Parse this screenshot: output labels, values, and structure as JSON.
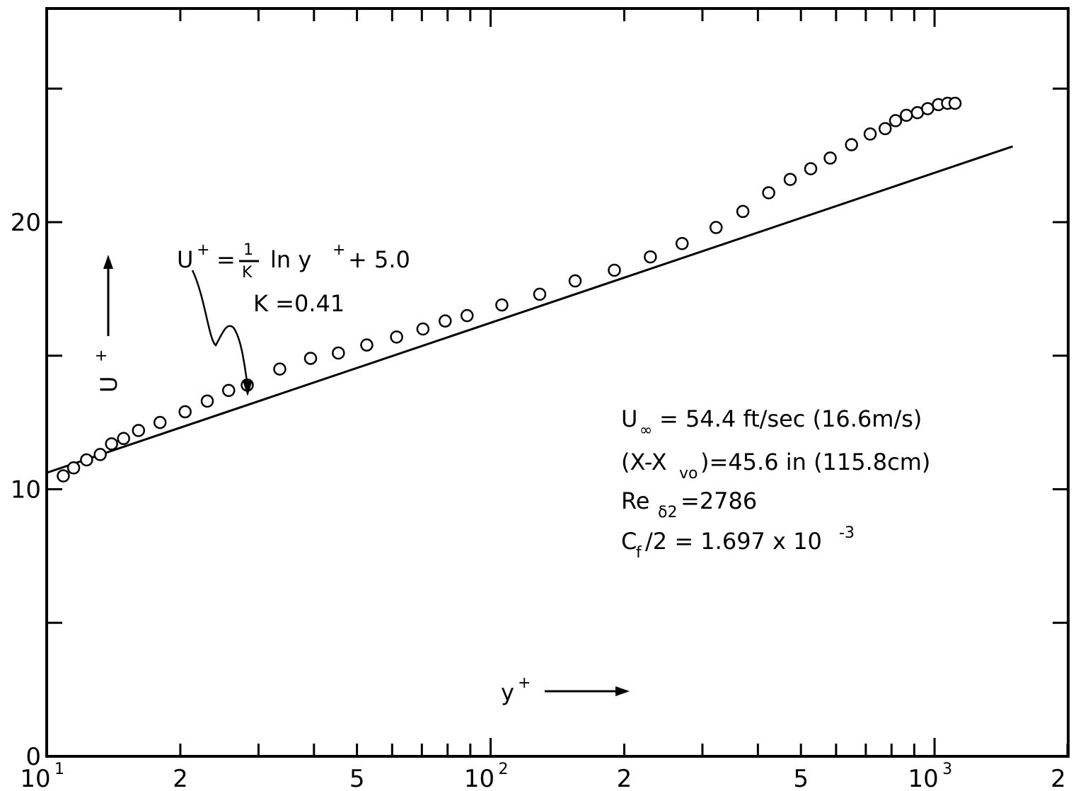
{
  "chart_data": {
    "type": "scatter",
    "title": "",
    "xscale": "log",
    "xlim": [
      10,
      2000
    ],
    "ylim": [
      0,
      28
    ],
    "x_ticks": [
      {
        "value": 10,
        "base": "10",
        "exp": "1"
      },
      {
        "value": 20,
        "label": "2"
      },
      {
        "value": 50,
        "label": "5"
      },
      {
        "value": 100,
        "base": "10",
        "exp": "2"
      },
      {
        "value": 200,
        "label": "2"
      },
      {
        "value": 500,
        "label": "5"
      },
      {
        "value": 1000,
        "base": "10",
        "exp": "3"
      },
      {
        "value": 2000,
        "label": "2"
      }
    ],
    "y_ticks": [
      {
        "value": 0,
        "label": "0"
      },
      {
        "value": 10,
        "label": "10"
      },
      {
        "value": 20,
        "label": "20"
      }
    ],
    "xlabel": {
      "main": "y",
      "sup": "+"
    },
    "ylabel": {
      "main": "U",
      "sup": "+"
    },
    "series": [
      {
        "marker": "open-circle",
        "points": [
          [
            10.9,
            10.5
          ],
          [
            11.5,
            10.8
          ],
          [
            12.3,
            11.1
          ],
          [
            13.2,
            11.3
          ],
          [
            14.0,
            11.7
          ],
          [
            14.9,
            11.9
          ],
          [
            16.1,
            12.2
          ],
          [
            18.0,
            12.5
          ],
          [
            20.5,
            12.9
          ],
          [
            23.0,
            13.3
          ],
          [
            25.7,
            13.7
          ],
          [
            28.3,
            13.9
          ],
          [
            33.5,
            14.5
          ],
          [
            39.3,
            14.9
          ],
          [
            45.4,
            15.1
          ],
          [
            52.6,
            15.4
          ],
          [
            61.4,
            15.7
          ],
          [
            70.4,
            16.0
          ],
          [
            79.0,
            16.3
          ],
          [
            88.5,
            16.5
          ],
          [
            106.0,
            16.9
          ],
          [
            129.0,
            17.3
          ],
          [
            155.0,
            17.8
          ],
          [
            190.0,
            18.2
          ],
          [
            229.0,
            18.7
          ],
          [
            270.0,
            19.2
          ],
          [
            322.0,
            19.8
          ],
          [
            370.0,
            20.4
          ],
          [
            423.0,
            21.1
          ],
          [
            473.0,
            21.6
          ],
          [
            526.0,
            22.0
          ],
          [
            582.0,
            22.4
          ],
          [
            650.0,
            22.9
          ],
          [
            716.0,
            23.3
          ],
          [
            774.0,
            23.5
          ],
          [
            817.0,
            23.8
          ],
          [
            864.0,
            24.0
          ],
          [
            915.0,
            24.1
          ],
          [
            965.0,
            24.25
          ],
          [
            1020.0,
            24.4
          ],
          [
            1070.0,
            24.45
          ],
          [
            1112.0,
            24.45
          ]
        ]
      },
      {
        "type": "line",
        "function": "U+ = (1/0.41) ln y+ + 5.0",
        "kappa": 0.41,
        "B": 5.0,
        "x_range": [
          10,
          1500
        ]
      }
    ],
    "annotations": {
      "law": {
        "lhs": "U",
        "lhs_sup": "+",
        "frac_num": "1",
        "frac_den": "K",
        "rest": "ln y",
        "rest_sup": "+",
        "tail": "+ 5.0"
      },
      "kappa": "K =0.41",
      "conditions": [
        {
          "main": "U",
          "sub": "∞",
          "rest": "= 54.4 ft/sec (16.6m/s)"
        },
        {
          "pre": "(X-X",
          "sub": "vo",
          "rest": ")=45.6  in (115.8cm)"
        },
        {
          "main": "Re",
          "sub": "δ2",
          "rest": " =2786"
        },
        {
          "main": "C",
          "sub": "f",
          "rest": "/2 = 1.697  x 10",
          "sup": "-3"
        }
      ]
    },
    "grid": false,
    "legend": "none"
  }
}
